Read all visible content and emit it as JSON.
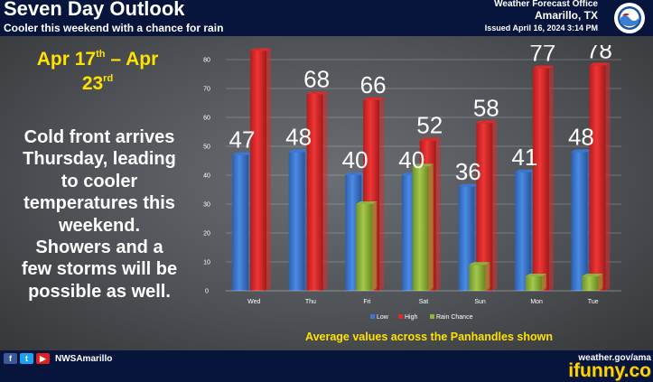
{
  "header": {
    "title": "Seven Day Outlook",
    "subtitle": "Cooler this weekend with a chance for rain",
    "office_name": "Weather Forecast Office",
    "office_location": "Amarillo, TX",
    "issued": "Issued April 16, 2024 3:14 PM"
  },
  "dates": {
    "start_prefix": "Apr 17",
    "start_suffix": "th",
    "dash": "– Apr",
    "end_day": "23",
    "end_suffix": "rd"
  },
  "summary": [
    "Cold front arrives",
    "Thursday, leading",
    "to cooler",
    "temperatures this",
    "weekend.",
    "Showers and a",
    "few storms will be",
    "possible as well."
  ],
  "note": "Average values across the Panhandles shown",
  "footer": {
    "handle": "NWSAmarillo",
    "website": "weather.gov/ama",
    "watermark": "ifunny.co",
    "icons": [
      "facebook-icon",
      "twitter-icon",
      "youtube-icon"
    ]
  },
  "colors": {
    "low": "#3a78d4",
    "high": "#e02a2a",
    "rain": "#8cb43c",
    "accent": "#ffe100",
    "banner": "#07153d"
  },
  "chart_data": {
    "type": "bar",
    "categories": [
      "Wed",
      "Thu",
      "Fri",
      "Sat",
      "Sun",
      "Mon",
      "Tue"
    ],
    "series": [
      {
        "name": "Low",
        "values": [
          47,
          48,
          40,
          40,
          36,
          41,
          48
        ]
      },
      {
        "name": "High",
        "values": [
          83,
          68,
          66,
          52,
          58,
          77,
          78
        ]
      },
      {
        "name": "Rain Chance",
        "values": [
          0,
          0,
          30,
          43,
          9,
          5,
          5
        ]
      }
    ],
    "ylim": [
      0,
      80
    ],
    "yticks": [
      "0",
      "10",
      "20",
      "30",
      "40",
      "50",
      "60",
      "70",
      "80"
    ],
    "data_labels": [
      {
        "day": "Wed",
        "low": "47",
        "high": "83"
      },
      {
        "day": "Thu",
        "low": "48",
        "high": "68"
      },
      {
        "day": "Fri",
        "low": "40",
        "high": "66"
      },
      {
        "day": "Sat",
        "low": "40",
        "high": "52"
      },
      {
        "day": "Sun",
        "low": "36",
        "high": "58"
      },
      {
        "day": "Mon",
        "low": "41",
        "high": "77"
      },
      {
        "day": "Tue",
        "low": "48",
        "high": "78"
      }
    ],
    "legend": "bottom",
    "grid": true,
    "style": "3d"
  }
}
